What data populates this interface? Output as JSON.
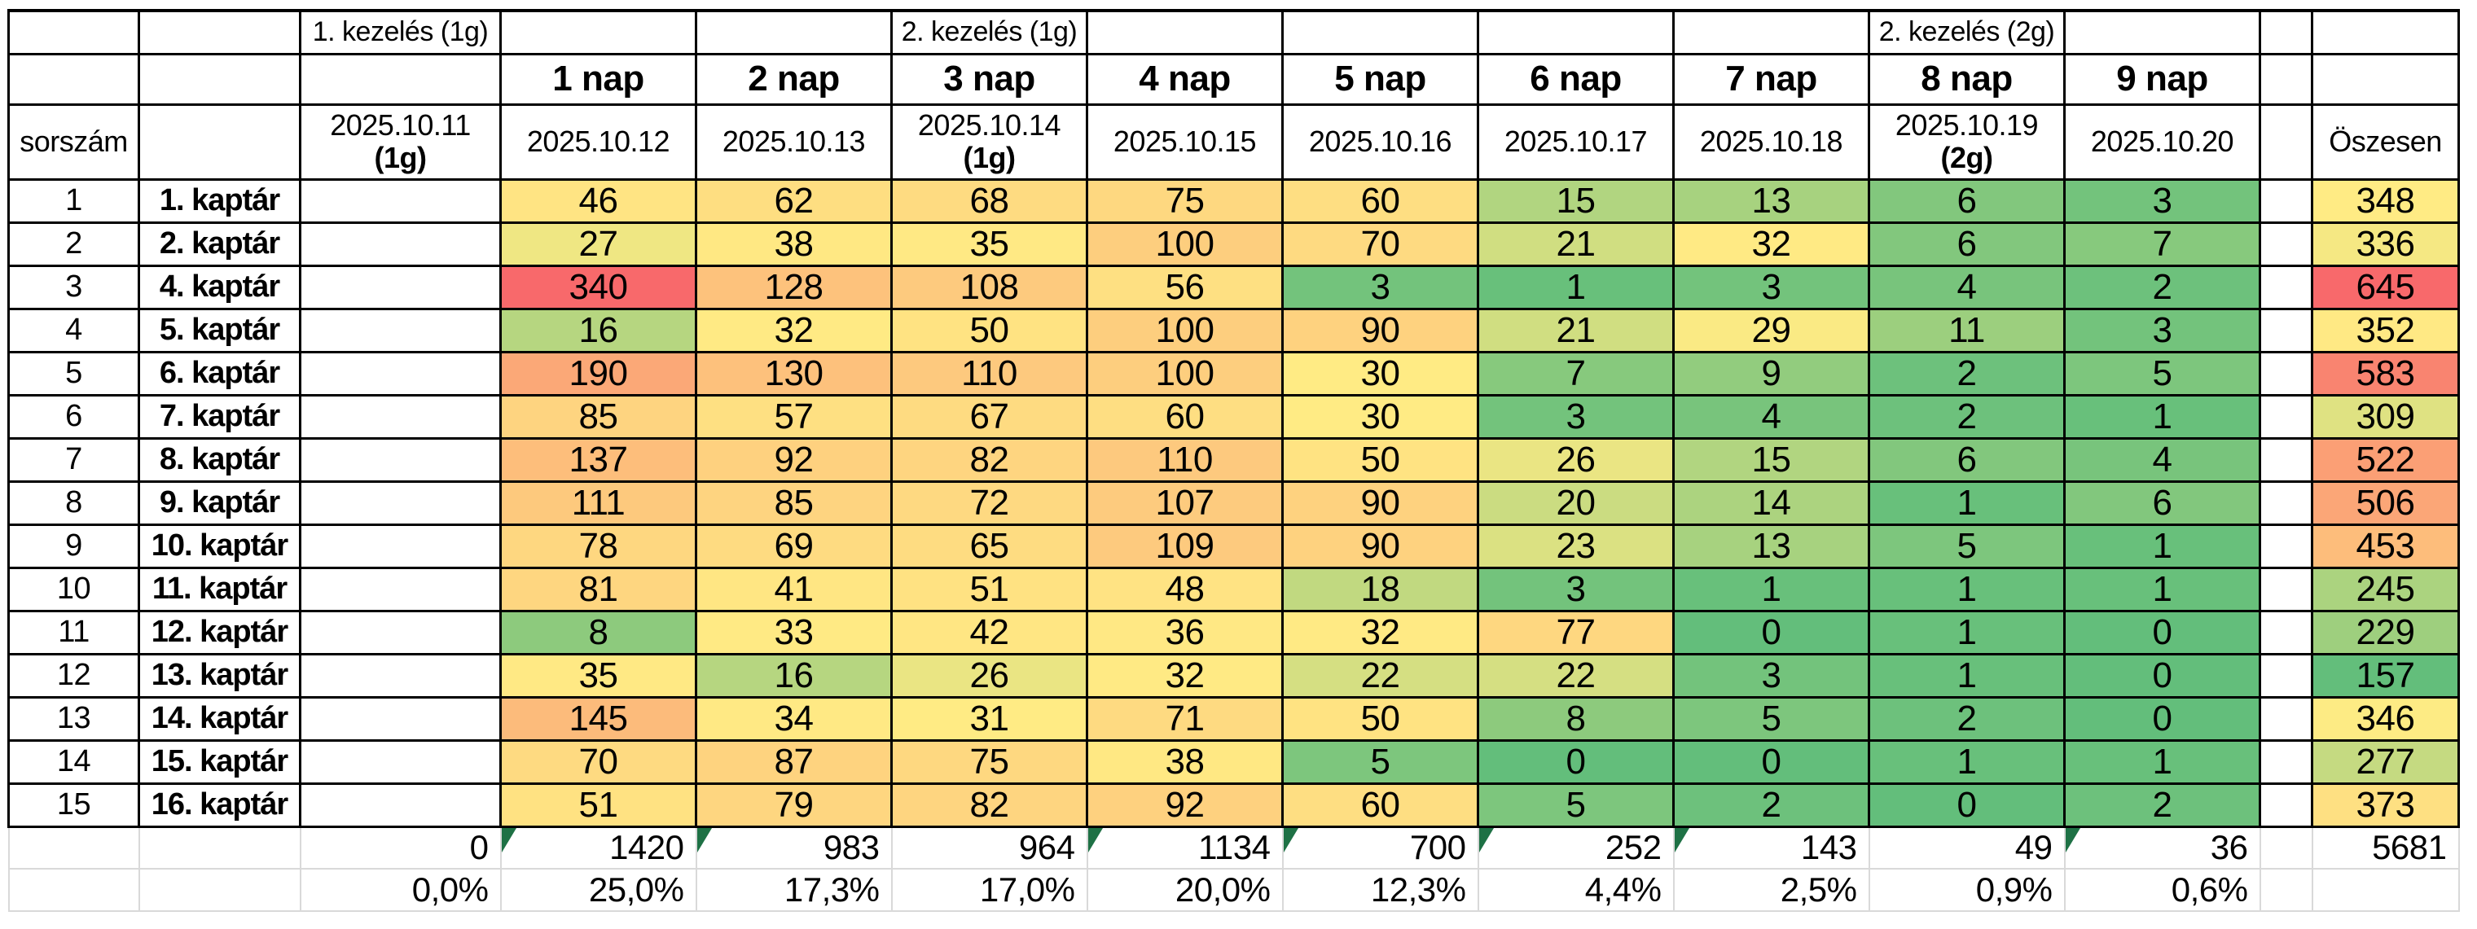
{
  "colors": {
    "scale_min": "#63BE7B",
    "scale_mid": "#FFEB84",
    "scale_max": "#F8696B",
    "indicator_green": "#1E7145",
    "grid_black": "#000000",
    "grid_gray": "#D9D9D9",
    "cell_text": "#000000",
    "page_bg": "#FFFFFF"
  },
  "table": {
    "corner_label": "sorszám",
    "total_header": "Öszesen",
    "treatments": [
      {
        "label": "1. kezelés (1g)",
        "day_column": 0
      },
      {
        "label": "2. kezelés (1g)",
        "day_column": 3
      },
      {
        "label": "2. kezelés (2g)",
        "day_column": 8
      }
    ],
    "day_headers": [
      "1 nap",
      "2 nap",
      "3 nap",
      "4 nap",
      "5 nap",
      "6 nap",
      "7 nap",
      "8 nap",
      "9 nap"
    ],
    "date_headers": [
      {
        "date": "2025.10.11",
        "note": "(1g)"
      },
      {
        "date": "2025.10.12",
        "note": ""
      },
      {
        "date": "2025.10.13",
        "note": ""
      },
      {
        "date": "2025.10.14",
        "note": "(1g)"
      },
      {
        "date": "2025.10.15",
        "note": ""
      },
      {
        "date": "2025.10.16",
        "note": ""
      },
      {
        "date": "2025.10.17",
        "note": ""
      },
      {
        "date": "2025.10.18",
        "note": ""
      },
      {
        "date": "2025.10.19",
        "note": "(2g)"
      },
      {
        "date": "2025.10.20",
        "note": ""
      }
    ],
    "rows": [
      {
        "index": "1",
        "name": "1. kaptár",
        "values": [
          46,
          62,
          68,
          75,
          60,
          15,
          13,
          6,
          3
        ],
        "total": 348
      },
      {
        "index": "2",
        "name": "2. kaptár",
        "values": [
          27,
          38,
          35,
          100,
          70,
          21,
          32,
          6,
          7
        ],
        "total": 336
      },
      {
        "index": "3",
        "name": "4. kaptár",
        "values": [
          340,
          128,
          108,
          56,
          3,
          1,
          3,
          4,
          2
        ],
        "total": 645
      },
      {
        "index": "4",
        "name": "5. kaptár",
        "values": [
          16,
          32,
          50,
          100,
          90,
          21,
          29,
          11,
          3
        ],
        "total": 352
      },
      {
        "index": "5",
        "name": "6. kaptár",
        "values": [
          190,
          130,
          110,
          100,
          30,
          7,
          9,
          2,
          5
        ],
        "total": 583
      },
      {
        "index": "6",
        "name": "7. kaptár",
        "values": [
          85,
          57,
          67,
          60,
          30,
          3,
          4,
          2,
          1
        ],
        "total": 309
      },
      {
        "index": "7",
        "name": "8. kaptár",
        "values": [
          137,
          92,
          82,
          110,
          50,
          26,
          15,
          6,
          4
        ],
        "total": 522
      },
      {
        "index": "8",
        "name": "9. kaptár",
        "values": [
          111,
          85,
          72,
          107,
          90,
          20,
          14,
          1,
          6
        ],
        "total": 506
      },
      {
        "index": "9",
        "name": "10. kaptár",
        "values": [
          78,
          69,
          65,
          109,
          90,
          23,
          13,
          5,
          1
        ],
        "total": 453
      },
      {
        "index": "10",
        "name": "11. kaptár",
        "values": [
          81,
          41,
          51,
          48,
          18,
          3,
          1,
          1,
          1
        ],
        "total": 245
      },
      {
        "index": "11",
        "name": "12. kaptár",
        "values": [
          8,
          33,
          42,
          36,
          32,
          77,
          0,
          1,
          0
        ],
        "total": 229
      },
      {
        "index": "12",
        "name": "13. kaptár",
        "values": [
          35,
          16,
          26,
          32,
          22,
          22,
          3,
          1,
          0
        ],
        "total": 157
      },
      {
        "index": "13",
        "name": "14. kaptár",
        "values": [
          145,
          34,
          31,
          71,
          50,
          8,
          5,
          2,
          0
        ],
        "total": 346
      },
      {
        "index": "14",
        "name": "15. kaptár",
        "values": [
          70,
          87,
          75,
          38,
          5,
          0,
          0,
          1,
          1
        ],
        "total": 277
      },
      {
        "index": "15",
        "name": "16. kaptár",
        "values": [
          51,
          79,
          82,
          92,
          60,
          5,
          2,
          0,
          2
        ],
        "total": 373
      }
    ],
    "totals_row": {
      "pre": "0",
      "days": [
        "1420",
        "983",
        "964",
        "1134",
        "700",
        "252",
        "143",
        "49",
        "36"
      ],
      "grand": "5681",
      "day_has_indicator": [
        true,
        true,
        false,
        true,
        true,
        true,
        true,
        false,
        true
      ]
    },
    "percents_row": {
      "pre": "0,0%",
      "days": [
        "25,0%",
        "17,3%",
        "17,0%",
        "20,0%",
        "12,3%",
        "4,4%",
        "2,5%",
        "0,9%",
        "0,6%"
      ]
    }
  }
}
